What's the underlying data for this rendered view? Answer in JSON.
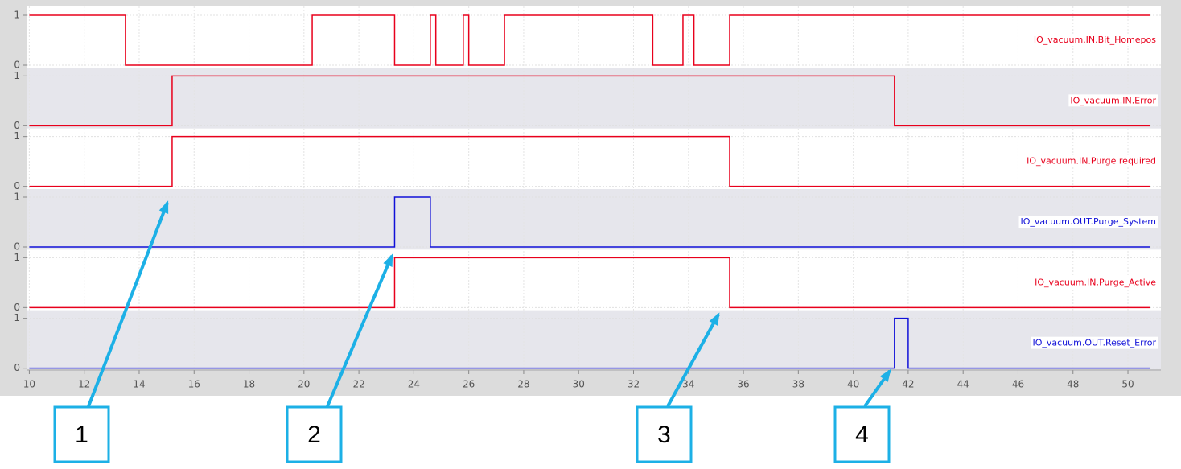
{
  "chart_data": {
    "type": "trace",
    "xlim": [
      9.9,
      51.2
    ],
    "xticks": [
      10,
      12,
      14,
      16,
      18,
      20,
      22,
      24,
      26,
      28,
      30,
      32,
      34,
      36,
      38,
      40,
      42,
      44,
      46,
      48,
      50
    ],
    "ylim": [
      0,
      1
    ],
    "yticks": [
      0,
      1
    ],
    "grid": true,
    "series": [
      {
        "name": "IO_vacuum.IN.Bit_Homepos",
        "color": "#e8001c",
        "x": [
          10,
          13.5,
          20.3,
          23.3,
          24.6,
          24.8,
          25.8,
          26.0,
          27.3,
          32.7,
          33.8,
          34.2,
          35.5,
          50.8
        ],
        "values": [
          1,
          0,
          1,
          0,
          1,
          0,
          1,
          0,
          1,
          0,
          1,
          0,
          1,
          1
        ]
      },
      {
        "name": "IO_vacuum.IN.Error",
        "color": "#e8001c",
        "x": [
          10,
          15.2,
          41.5,
          50.8
        ],
        "values": [
          0,
          1,
          0,
          0
        ]
      },
      {
        "name": "IO_vacuum.IN.Purge required",
        "color": "#e8001c",
        "x": [
          10,
          15.2,
          35.5,
          50.8
        ],
        "values": [
          0,
          1,
          0,
          0
        ]
      },
      {
        "name": "IO_vacuum.OUT.Purge_System",
        "color": "#1010d8",
        "x": [
          10,
          23.3,
          24.6,
          50.8
        ],
        "values": [
          0,
          1,
          0,
          0
        ]
      },
      {
        "name": "IO_vacuum.IN.Purge_Active",
        "color": "#e8001c",
        "x": [
          10,
          23.3,
          35.5,
          50.8
        ],
        "values": [
          0,
          1,
          0,
          0
        ]
      },
      {
        "name": "IO_vacuum.OUT.Reset_Error",
        "color": "#1010d8",
        "x": [
          10,
          41.5,
          42.0,
          50.8
        ],
        "values": [
          0,
          1,
          0,
          0
        ]
      }
    ],
    "annotations": [
      "1",
      "2",
      "3",
      "4"
    ]
  }
}
